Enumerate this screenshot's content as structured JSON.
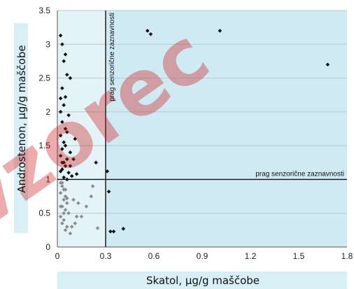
{
  "chart_data": {
    "type": "scatter",
    "title": "",
    "xlabel": "Skatol, µg/g maščobe",
    "ylabel": "Androstenon, µg/g maščobe",
    "xlim": [
      0,
      1.8
    ],
    "ylim": [
      0,
      3.5
    ],
    "x_ticks": [
      "0",
      "0.3",
      "0.6",
      "0.9",
      "1.2",
      "1.5",
      "1.8"
    ],
    "y_ticks": [
      "0",
      "0.5",
      "1",
      "1.5",
      "2",
      "2.5",
      "3",
      "3.5"
    ],
    "grid": "horizontal",
    "watermark": "vzorec",
    "colors": {
      "below_both_thresholds": "#8c8c8c",
      "above_threshold": "#111111",
      "plot_shading": "#cfeaf3",
      "label_bands": "#d9eff6"
    },
    "thresholds": {
      "skatol": 0.3,
      "androstenon": 1.0,
      "skatol_label": "prag senzorične zaznavnosti",
      "androstenon_label": "prag senzorične zaznavnosti"
    },
    "series": [
      {
        "group": "below_both_thresholds",
        "x": [
          0.02,
          0.03,
          0.04,
          0.02,
          0.05,
          0.04,
          0.06,
          0.03,
          0.05,
          0.07,
          0.02,
          0.04,
          0.03,
          0.06,
          0.05,
          0.08,
          0.02,
          0.04,
          0.03,
          0.05,
          0.06,
          0.1,
          0.13,
          0.15,
          0.18,
          0.21,
          0.22,
          0.25,
          0.12,
          0.09,
          0.11
        ],
        "y": [
          0.95,
          0.9,
          0.85,
          0.8,
          0.75,
          0.7,
          0.65,
          0.6,
          0.55,
          0.5,
          0.45,
          0.4,
          0.35,
          0.3,
          0.25,
          0.2,
          0.6,
          0.5,
          0.95,
          0.85,
          0.72,
          0.7,
          0.65,
          0.45,
          0.6,
          0.75,
          0.9,
          0.28,
          0.45,
          0.3,
          0.35
        ]
      },
      {
        "group": "above_threshold",
        "x": [
          0.02,
          0.03,
          0.05,
          0.04,
          0.06,
          0.08,
          0.03,
          0.02,
          0.05,
          0.04,
          0.02,
          0.07,
          0.03,
          0.06,
          0.02,
          0.04,
          0.05,
          0.08,
          0.03,
          0.02,
          0.06,
          0.04,
          0.05,
          0.03,
          0.07,
          0.09,
          0.12,
          0.08,
          0.1,
          0.06,
          0.04,
          0.02,
          0.03,
          0.11,
          0.05,
          0.24,
          0.31,
          0.56,
          0.58,
          1.01,
          1.68,
          0.32,
          0.33,
          0.35,
          0.41
        ],
        "y": [
          3.13,
          3.0,
          2.85,
          2.75,
          2.55,
          2.5,
          2.35,
          2.2,
          2.22,
          2.1,
          2.0,
          1.95,
          1.85,
          1.7,
          1.65,
          1.55,
          1.5,
          1.4,
          1.45,
          1.35,
          1.3,
          1.25,
          1.2,
          1.15,
          1.1,
          1.05,
          1.08,
          1.2,
          1.3,
          1.0,
          1.03,
          1.12,
          1.25,
          1.6,
          1.75,
          1.25,
          1.12,
          3.2,
          3.15,
          3.2,
          2.7,
          0.82,
          0.23,
          0.23,
          0.27
        ]
      }
    ]
  }
}
